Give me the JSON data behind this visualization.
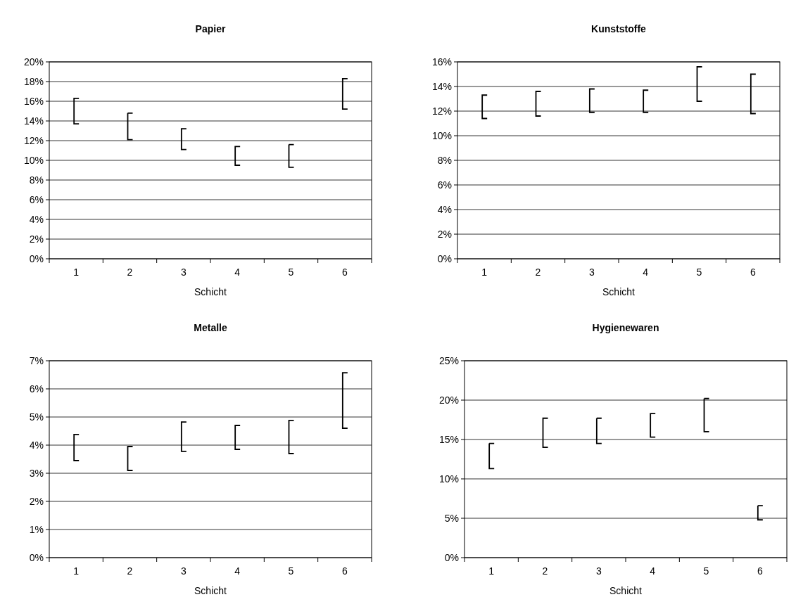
{
  "chart_data": [
    {
      "type": "bar",
      "title": "Papier",
      "xlabel": "Schicht",
      "categories": [
        "1",
        "2",
        "3",
        "4",
        "5",
        "6"
      ],
      "color": "#000000",
      "base": [
        13.7,
        12.1,
        11.1,
        9.5,
        9.3,
        15.2
      ],
      "values": [
        2.6,
        2.7,
        2.1,
        1.9,
        2.3,
        3.1
      ],
      "ylim": [
        0,
        20
      ],
      "yticks": [
        {
          "value": 0,
          "label": "0%"
        },
        {
          "value": 2,
          "label": "2%"
        },
        {
          "value": 4,
          "label": "4%"
        },
        {
          "value": 6,
          "label": "6%"
        },
        {
          "value": 8,
          "label": "8%"
        },
        {
          "value": 10,
          "label": "10%"
        },
        {
          "value": 12,
          "label": "12%"
        },
        {
          "value": 14,
          "label": "14%"
        },
        {
          "value": 16,
          "label": "16%"
        },
        {
          "value": 18,
          "label": "18%"
        },
        {
          "value": 20,
          "label": "20%"
        }
      ],
      "grid": "y",
      "legend": false
    },
    {
      "type": "bar",
      "title": "Kunststoffe",
      "xlabel": "Schicht",
      "categories": [
        "1",
        "2",
        "3",
        "4",
        "5",
        "6"
      ],
      "color": "#000000",
      "base": [
        11.4,
        11.6,
        11.9,
        11.9,
        12.8,
        11.8
      ],
      "values": [
        1.9,
        2.0,
        1.9,
        1.8,
        2.8,
        3.2
      ],
      "ylim": [
        0,
        16
      ],
      "yticks": [
        {
          "value": 0,
          "label": "0%"
        },
        {
          "value": 2,
          "label": "2%"
        },
        {
          "value": 4,
          "label": "4%"
        },
        {
          "value": 6,
          "label": "6%"
        },
        {
          "value": 8,
          "label": "8%"
        },
        {
          "value": 10,
          "label": "10%"
        },
        {
          "value": 12,
          "label": "12%"
        },
        {
          "value": 14,
          "label": "14%"
        },
        {
          "value": 16,
          "label": "16%"
        }
      ],
      "grid": "y",
      "legend": false
    },
    {
      "type": "bar",
      "title": "Metalle",
      "xlabel": "Schicht",
      "categories": [
        "1",
        "2",
        "3",
        "4",
        "5",
        "6"
      ],
      "color": "#000000",
      "base": [
        3.45,
        3.1,
        3.78,
        3.85,
        3.7,
        4.6
      ],
      "values": [
        0.93,
        0.85,
        1.04,
        0.85,
        1.18,
        1.97
      ],
      "ylim": [
        0,
        7
      ],
      "yticks": [
        {
          "value": 0,
          "label": "0%"
        },
        {
          "value": 1,
          "label": "1%"
        },
        {
          "value": 2,
          "label": "2%"
        },
        {
          "value": 3,
          "label": "3%"
        },
        {
          "value": 4,
          "label": "4%"
        },
        {
          "value": 5,
          "label": "5%"
        },
        {
          "value": 6,
          "label": "6%"
        },
        {
          "value": 7,
          "label": "7%"
        }
      ],
      "grid": "y",
      "legend": false
    },
    {
      "type": "bar",
      "title": "Hygienewaren",
      "xlabel": "Schicht",
      "categories": [
        "1",
        "2",
        "3",
        "4",
        "5",
        "6"
      ],
      "color": "#000000",
      "base": [
        11.3,
        14.0,
        14.5,
        15.3,
        16.0,
        4.8
      ],
      "values": [
        3.2,
        3.7,
        3.2,
        3.0,
        4.2,
        1.8
      ],
      "ylim": [
        0,
        25
      ],
      "yticks": [
        {
          "value": 0,
          "label": "0%"
        },
        {
          "value": 5,
          "label": "5%"
        },
        {
          "value": 10,
          "label": "10%"
        },
        {
          "value": 15,
          "label": "15%"
        },
        {
          "value": 20,
          "label": "20%"
        },
        {
          "value": 25,
          "label": "25%"
        }
      ],
      "grid": "y",
      "legend": false
    }
  ]
}
